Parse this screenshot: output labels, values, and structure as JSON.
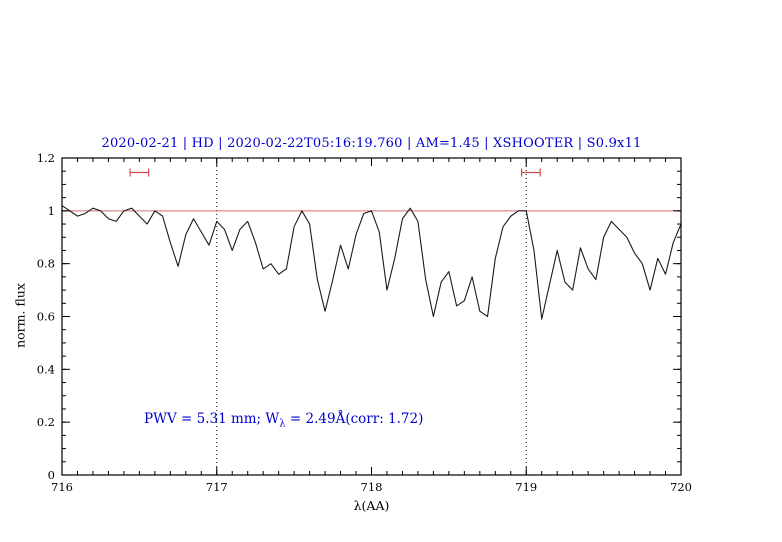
{
  "title": "2020-02-21 | HD | 2020-02-22T05:16:19.760 | AM=1.45 | XSHOOTER | S0.9x11",
  "annotation": {
    "prefix": "PWV = 5.31 mm; W",
    "sub": "λ",
    "suffix": " = 2.49Å(corr: 1.72)"
  },
  "colors": {
    "title_blue": "#0000cd",
    "annotation_blue": "#0000cd",
    "spectrum_black": "#1a1a1a",
    "unity_line_red": "#d96b6b",
    "marker_red": "#d94c4c",
    "axis_black": "#000000"
  },
  "chart_data": {
    "type": "line",
    "title": "2020-02-21 | HD | 2020-02-22T05:16:19.760 | AM=1.45 | XSHOOTER | S0.9x11",
    "xlabel": "λ(AA)",
    "ylabel": "norm. flux",
    "xlim": [
      716,
      720
    ],
    "ylim": [
      0,
      1.2
    ],
    "x_ticks": [
      716,
      717,
      718,
      719,
      720
    ],
    "x_tick_labels": [
      "716",
      "717",
      "718",
      "719",
      "720"
    ],
    "y_ticks": [
      0,
      0.2,
      0.4,
      0.6,
      0.8,
      1,
      1.2
    ],
    "y_tick_labels": [
      "0",
      "0.2",
      "0.4",
      "0.6",
      "0.8",
      "1",
      "1.2"
    ],
    "x_minor_step": 0.1,
    "y_minor_step": 0.05,
    "grid": "off",
    "legend": "none",
    "reference_hline_y": 1.0,
    "dotted_vlines_x": [
      717,
      719
    ],
    "range_markers": [
      {
        "x1": 716.44,
        "x2": 716.56,
        "y": 1.145
      },
      {
        "x1": 718.97,
        "x2": 719.09,
        "y": 1.145
      }
    ],
    "series": [
      {
        "name": "telluric-spectrum",
        "x": [
          716.0,
          716.05,
          716.1,
          716.15,
          716.2,
          716.25,
          716.3,
          716.35,
          716.4,
          716.45,
          716.5,
          716.55,
          716.6,
          716.65,
          716.7,
          716.75,
          716.8,
          716.85,
          716.9,
          716.95,
          717.0,
          717.05,
          717.1,
          717.15,
          717.2,
          717.25,
          717.3,
          717.35,
          717.4,
          717.45,
          717.5,
          717.55,
          717.6,
          717.65,
          717.7,
          717.75,
          717.8,
          717.85,
          717.9,
          717.95,
          718.0,
          718.05,
          718.1,
          718.15,
          718.2,
          718.25,
          718.3,
          718.35,
          718.4,
          718.45,
          718.5,
          718.55,
          718.6,
          718.65,
          718.7,
          718.75,
          718.8,
          718.85,
          718.9,
          718.95,
          719.0,
          719.05,
          719.1,
          719.15,
          719.2,
          719.25,
          719.3,
          719.35,
          719.4,
          719.45,
          719.5,
          719.55,
          719.6,
          719.65,
          719.7,
          719.75,
          719.8,
          719.85,
          719.9,
          719.95,
          720.0
        ],
        "y": [
          1.02,
          1.0,
          0.98,
          0.99,
          1.01,
          1.0,
          0.97,
          0.96,
          1.0,
          1.01,
          0.98,
          0.95,
          1.0,
          0.98,
          0.88,
          0.79,
          0.91,
          0.97,
          0.92,
          0.87,
          0.96,
          0.93,
          0.85,
          0.93,
          0.96,
          0.88,
          0.78,
          0.8,
          0.76,
          0.78,
          0.94,
          1.0,
          0.95,
          0.74,
          0.62,
          0.74,
          0.87,
          0.78,
          0.91,
          0.99,
          1.0,
          0.92,
          0.7,
          0.82,
          0.97,
          1.01,
          0.96,
          0.74,
          0.6,
          0.73,
          0.77,
          0.64,
          0.66,
          0.75,
          0.62,
          0.6,
          0.82,
          0.94,
          0.98,
          1.0,
          1.0,
          0.85,
          0.59,
          0.72,
          0.85,
          0.73,
          0.7,
          0.86,
          0.78,
          0.74,
          0.9,
          0.96,
          0.93,
          0.9,
          0.84,
          0.8,
          0.7,
          0.82,
          0.76,
          0.88,
          0.95
        ]
      }
    ]
  }
}
